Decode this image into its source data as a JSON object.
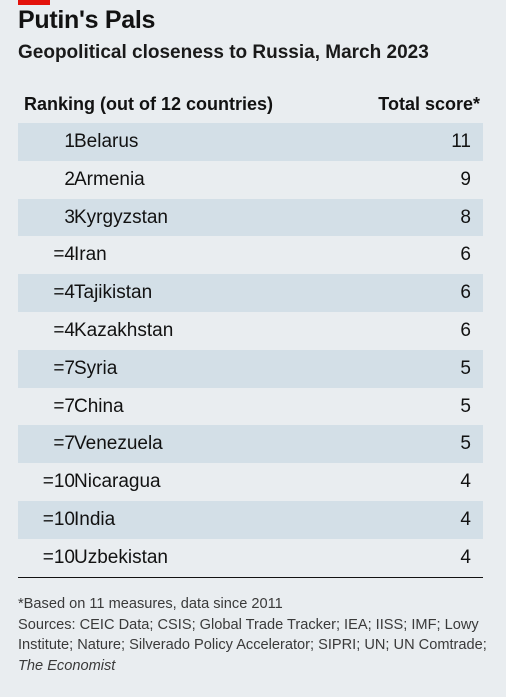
{
  "title": "Putin's Pals",
  "subtitle": "Geopolitical closeness to Russia, March 2023",
  "colors": {
    "accent": "#e3120b",
    "background": "#e9edf0",
    "row_shade": "#d3dfe7",
    "text": "#121212"
  },
  "table": {
    "headers": [
      "Ranking (out of 12 countries)",
      "Total score*"
    ]
  },
  "chart_data": {
    "type": "table",
    "title": "Putin's Pals",
    "subtitle": "Geopolitical closeness to Russia, March 2023",
    "columns": [
      "Ranking (out of 12 countries)",
      "Total score*"
    ],
    "rows": [
      {
        "rank": "1",
        "country": "Belarus",
        "score": 11
      },
      {
        "rank": "2",
        "country": "Armenia",
        "score": 9
      },
      {
        "rank": "3",
        "country": "Kyrgyzstan",
        "score": 8
      },
      {
        "rank": "=4",
        "country": "Iran",
        "score": 6
      },
      {
        "rank": "=4",
        "country": "Tajikistan",
        "score": 6
      },
      {
        "rank": "=4",
        "country": "Kazakhstan",
        "score": 6
      },
      {
        "rank": "=7",
        "country": "Syria",
        "score": 5
      },
      {
        "rank": "=7",
        "country": "China",
        "score": 5
      },
      {
        "rank": "=7",
        "country": "Venezuela",
        "score": 5
      },
      {
        "rank": "=10",
        "country": "Nicaragua",
        "score": 4
      },
      {
        "rank": "=10",
        "country": "India",
        "score": 4
      },
      {
        "rank": "=10",
        "country": "Uzbekistan",
        "score": 4
      }
    ]
  },
  "footnote": {
    "note": "*Based on 11 measures, data since 2011",
    "sources_prefix": "Sources: CEIC Data; CSIS; Global Trade Tracker; IEA; IISS; IMF; Lowy Institute; Nature; Silverado Policy Accelerator; SIPRI; UN; UN Comtrade; ",
    "sources_italic": "The Economist"
  }
}
